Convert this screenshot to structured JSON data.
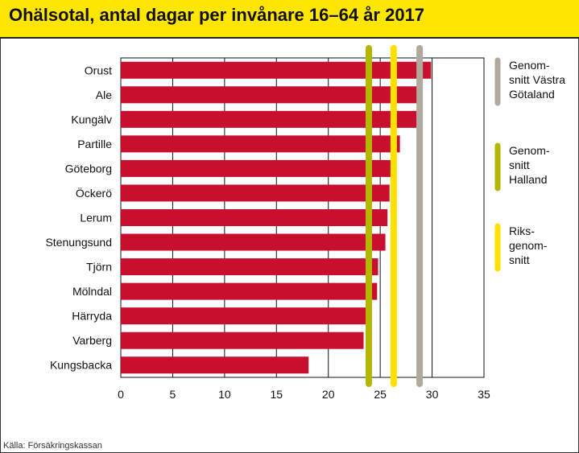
{
  "title": "Ohälsotal, antal dagar per invånare 16–64 år 2017",
  "source": "Källa: Försäkringskassan",
  "colors": {
    "header": "#ffe600",
    "bar": "#c8102e",
    "vastra_gotaland": "#b1a99e",
    "halland": "#b4b700",
    "riket": "#ffe100"
  },
  "chart_data": {
    "type": "bar",
    "orientation": "horizontal",
    "categories": [
      "Orust",
      "Ale",
      "Kungälv",
      "Partille",
      "Göteborg",
      "Öckerö",
      "Lerum",
      "Stenungsund",
      "Tjörn",
      "Mölndal",
      "Härryda",
      "Varberg",
      "Kungsbacka"
    ],
    "values": [
      29.9,
      29.1,
      28.5,
      26.9,
      26.0,
      25.9,
      25.7,
      25.5,
      24.8,
      24.7,
      23.6,
      23.4,
      18.1
    ],
    "xlim": [
      0,
      35
    ],
    "xticks": [
      "0",
      "5",
      "10",
      "15",
      "20",
      "25",
      "30",
      "35"
    ],
    "grid": true,
    "reference_lines": [
      {
        "name_lines": [
          "Genom-",
          "snitt Västra",
          "Götaland"
        ],
        "value": 28.8,
        "color": "#b1a99e"
      },
      {
        "name_lines": [
          "Genom-",
          "snitt",
          "Halland"
        ],
        "value": 23.9,
        "color": "#b4b700"
      },
      {
        "name_lines": [
          "Riks-",
          "genom-",
          "snitt"
        ],
        "value": 26.3,
        "color": "#ffe100"
      }
    ],
    "legend_position": "right"
  }
}
